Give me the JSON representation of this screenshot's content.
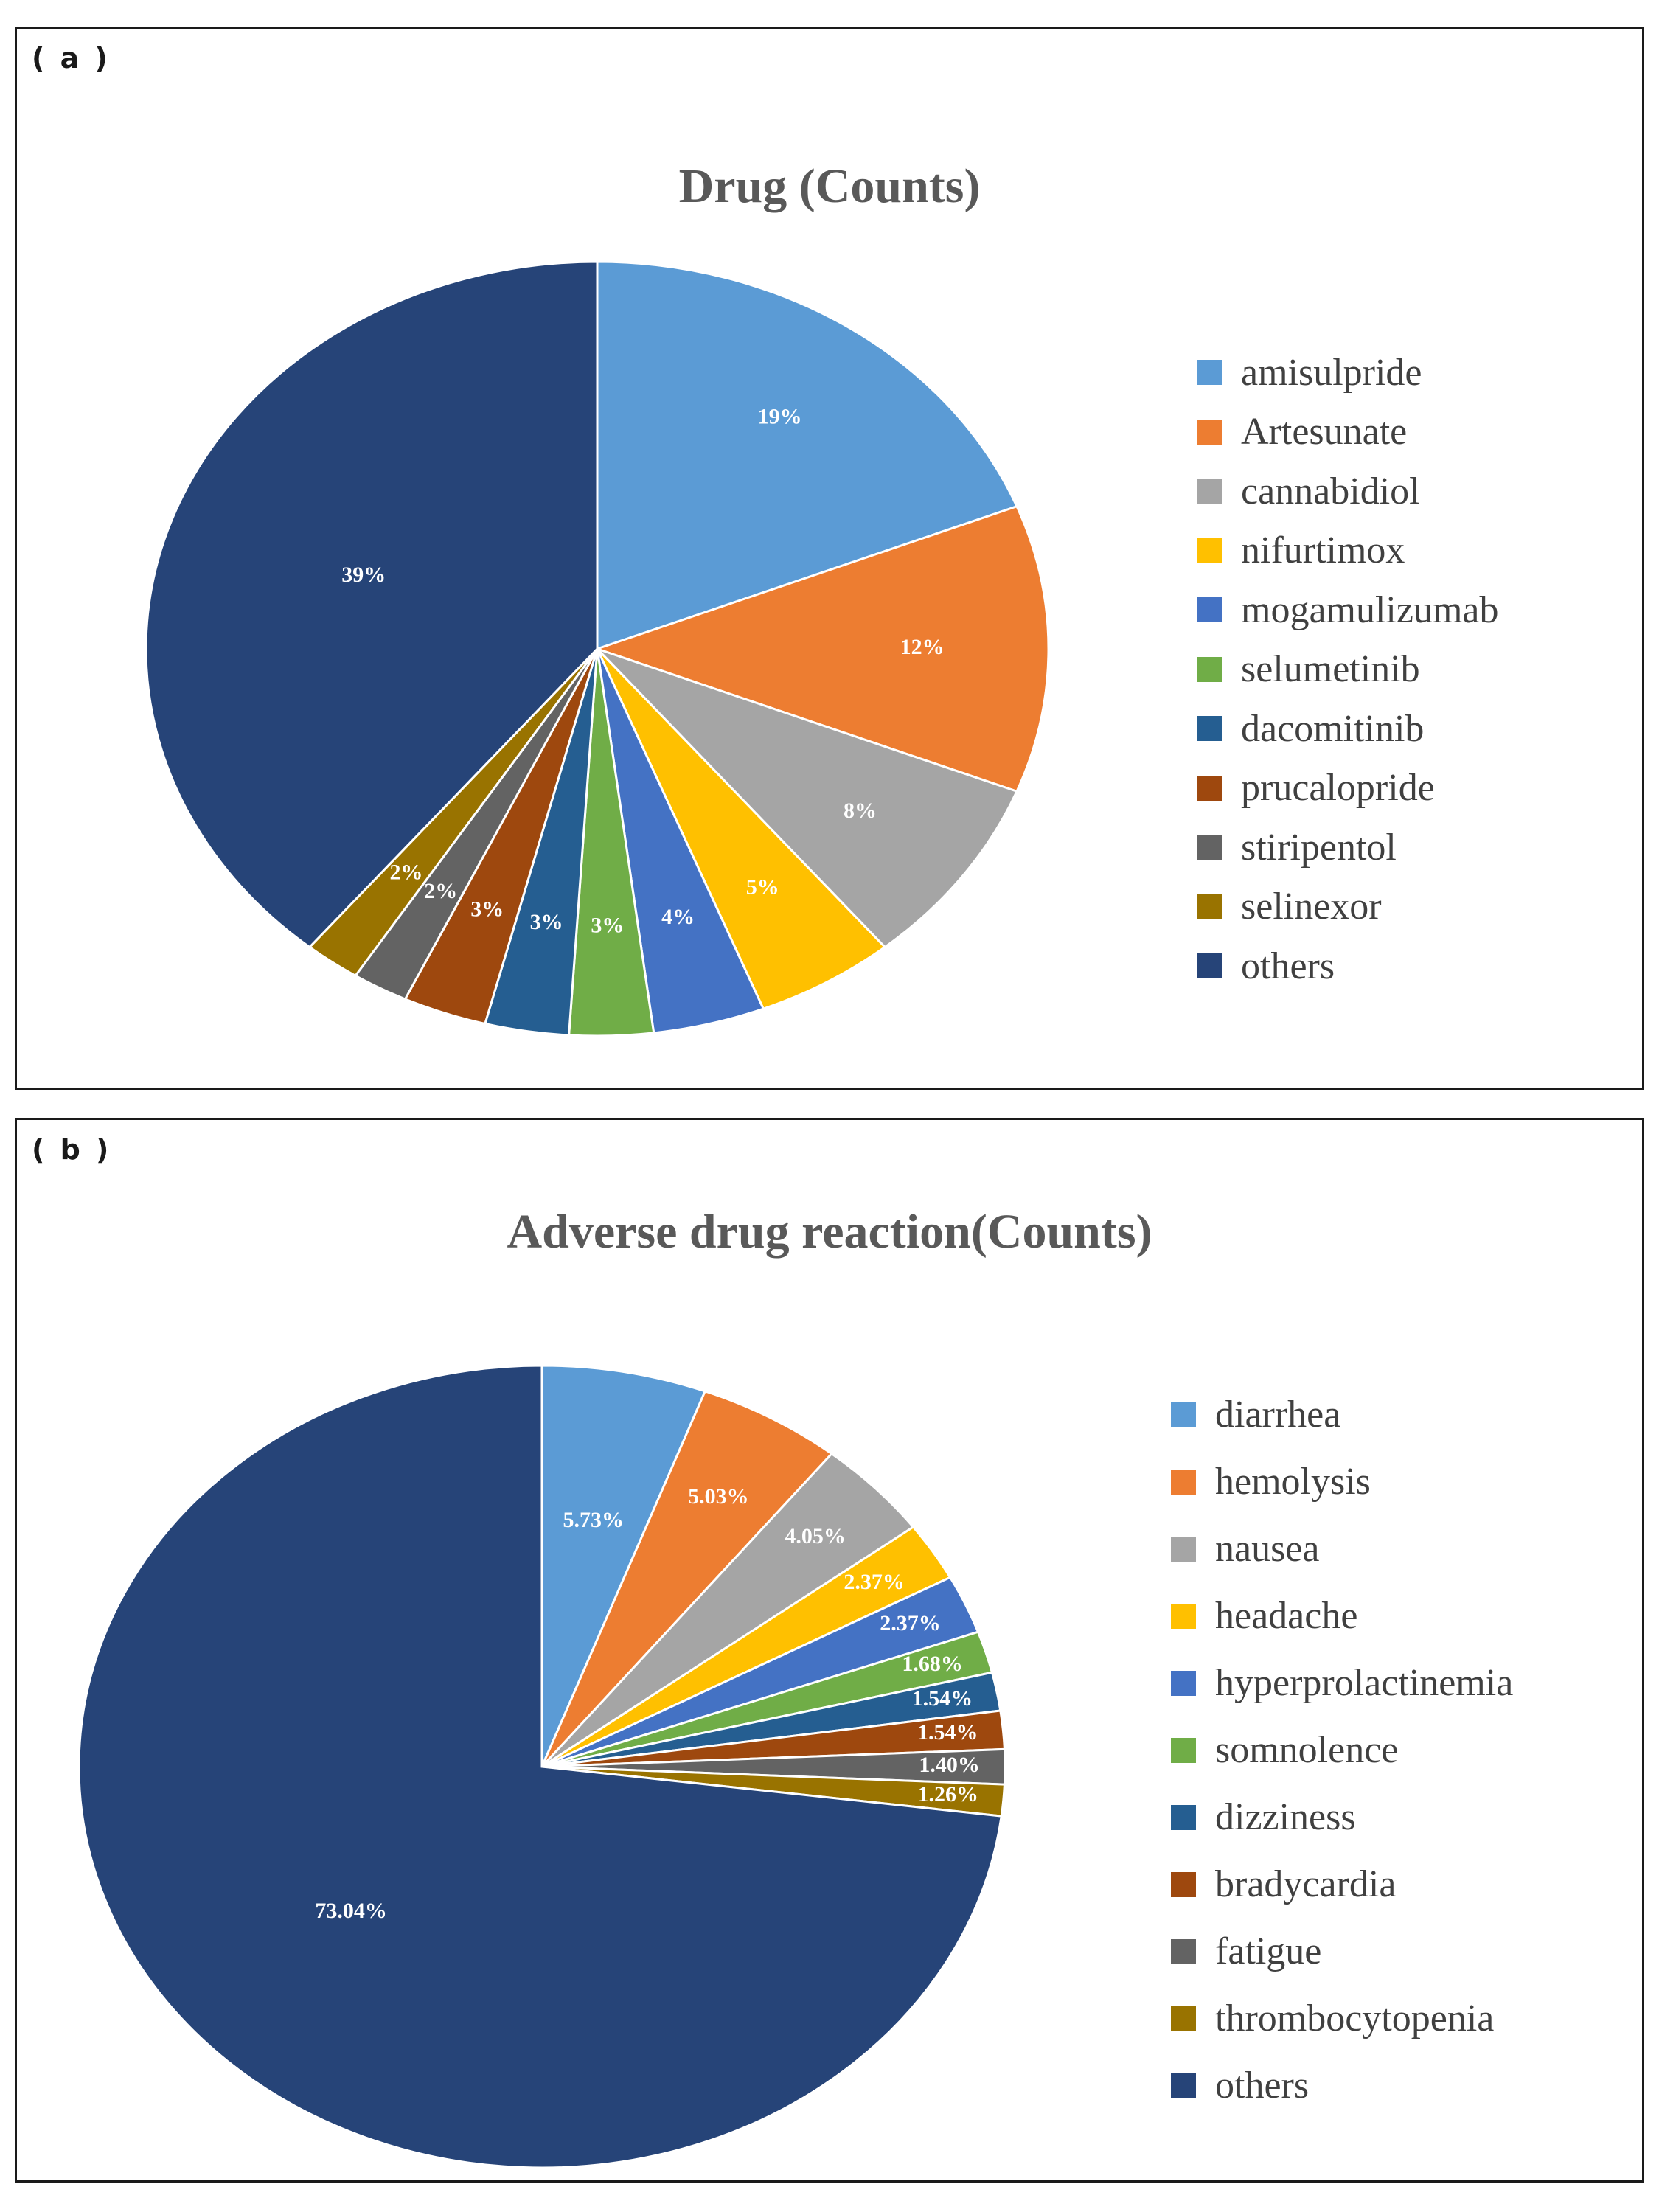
{
  "panel_a": {
    "label": "( a )"
  },
  "panel_b": {
    "label": "( b )"
  },
  "chart_data": [
    {
      "type": "pie",
      "title": "Drug (Counts)",
      "categories": [
        "amisulpride",
        "Artesunate",
        "cannabidiol",
        "nifurtimox",
        "mogamulizumab",
        "selumetinib",
        "dacomitinib",
        "prucalopride",
        "stiripentol",
        "selinexor",
        "others"
      ],
      "values": [
        19,
        12,
        8,
        5,
        4,
        3,
        3,
        3,
        2,
        2,
        39
      ],
      "labels": [
        "19%",
        "12%",
        "8%",
        "5%",
        "4%",
        "3%",
        "3%",
        "3%",
        "2%",
        "2%",
        "39%"
      ],
      "colors": [
        "#5B9BD5",
        "#ED7D31",
        "#A5A5A5",
        "#FFC000",
        "#4472C4",
        "#70AD47",
        "#255E91",
        "#9E480E",
        "#636363",
        "#997300",
        "#264478"
      ],
      "legend": "right"
    },
    {
      "type": "pie",
      "title": "Adverse drug reaction(Counts)",
      "categories": [
        "diarrhea",
        "hemolysis",
        "nausea",
        "headache",
        "hyperprolactinemia",
        "somnolence",
        "dizziness",
        "bradycardia",
        "fatigue",
        "thrombocytopenia",
        "others"
      ],
      "values": [
        5.73,
        5.03,
        4.05,
        2.37,
        2.37,
        1.68,
        1.54,
        1.54,
        1.4,
        1.26,
        73.04
      ],
      "labels": [
        "5.73%",
        "5.03%",
        "4.05%",
        "2.37%",
        "2.37%",
        "1.68%",
        "1.54%",
        "1.54%",
        "1.40%",
        "1.26%",
        "73.04%"
      ],
      "colors": [
        "#5B9BD5",
        "#ED7D31",
        "#A5A5A5",
        "#FFC000",
        "#4472C4",
        "#70AD47",
        "#255E91",
        "#9E480E",
        "#636363",
        "#997300",
        "#264478"
      ],
      "legend": "right"
    }
  ]
}
